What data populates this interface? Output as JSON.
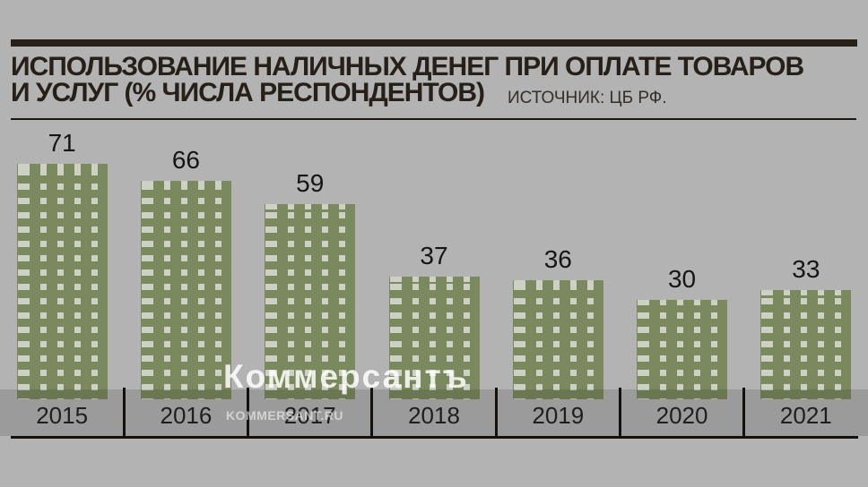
{
  "theme": {
    "background": "#b3b3b3",
    "ink": "#272019",
    "axis_line": "#14110e",
    "bar_color": "#7b8a5e",
    "bar_dot_color": "#cdd1c3",
    "label_band": "rgba(0,0,0,0.135)",
    "watermark_color": "#ffffff"
  },
  "header": {
    "title_line1": "ИСПОЛЬЗОВАНИЕ НАЛИЧНЫХ ДЕНЕГ ПРИ ОПЛАТЕ ТОВАРОВ",
    "title_line2": "И УСЛУГ (% ЧИСЛА РЕСПОНДЕНТОВ)",
    "source": "ИСТОЧНИК: ЦБ РФ."
  },
  "watermark": {
    "logo": "Коммерсантъ",
    "site": "KOMMERSANT.RU"
  },
  "chart_data": {
    "type": "bar",
    "title": "ИСПОЛЬЗОВАНИЕ НАЛИЧНЫХ ДЕНЕГ ПРИ ОПЛАТЕ ТОВАРОВ И УСЛУГ (% ЧИСЛА РЕСПОНДЕНТОВ)",
    "source": "ИСТОЧНИК: ЦБ РФ.",
    "categories": [
      "2015",
      "2016",
      "2017",
      "2018",
      "2019",
      "2020",
      "2021"
    ],
    "values": [
      71,
      66,
      59,
      37,
      36,
      30,
      33
    ],
    "xlabel": "",
    "ylabel": "% числа респондентов",
    "ylim": [
      0,
      75
    ],
    "grid": false,
    "legend": false,
    "value_labels": true
  }
}
